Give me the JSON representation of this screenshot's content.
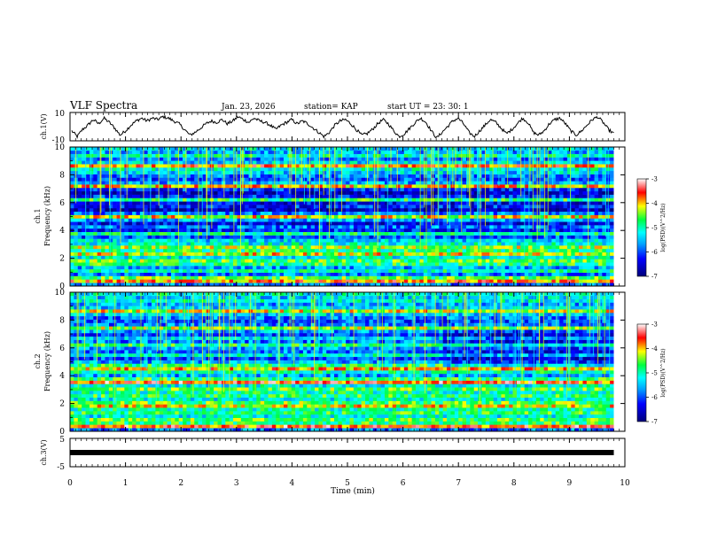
{
  "header": {
    "title": "VLF Spectra",
    "date": "Jan. 23, 2026",
    "station": "station= KAP",
    "start": "start  UT =   23: 30: 1"
  },
  "chart_data": [
    {
      "type": "line",
      "name": "ch1-voltage",
      "ylabel": "ch.1(V)",
      "ylim": [
        -10,
        10
      ],
      "yticks": [
        "10",
        "-10"
      ],
      "xlim": [
        0,
        10
      ],
      "x_end_min": 9.8,
      "y": [
        -3,
        -7,
        -2,
        1,
        5,
        2,
        6,
        3,
        -1,
        -6,
        -3,
        1,
        4,
        6,
        4,
        6,
        5,
        7,
        6,
        4,
        2,
        -2,
        -6,
        -4,
        -1,
        2,
        4,
        3,
        5,
        2,
        4,
        7,
        5,
        3,
        6,
        4,
        3,
        1,
        -2,
        1,
        3,
        5,
        2,
        4,
        2,
        -1,
        -4,
        -7,
        -4,
        1,
        4,
        5,
        2,
        -2,
        -6,
        -5,
        -2,
        2,
        5,
        2,
        -3,
        -7,
        -5,
        -1,
        3,
        6,
        3,
        -3,
        -8,
        -4,
        0,
        4,
        6,
        2,
        -4,
        -7,
        -3,
        1,
        5,
        3,
        -1,
        -5,
        -2,
        2,
        6,
        3,
        -4,
        -6,
        -3,
        2,
        5,
        6,
        2,
        -3,
        -6,
        -3,
        1,
        5,
        7,
        3,
        -2,
        -5
      ]
    },
    {
      "type": "heatmap",
      "name": "ch1-spectrogram",
      "ylabel": "ch.1\nFrequency (kHz)",
      "ylim": [
        0,
        10
      ],
      "yticks": [
        "0",
        "2",
        "4",
        "6",
        "8",
        "10"
      ],
      "colorbar": {
        "label": "log(PSD)(V^2/Hz)",
        "range": [
          -7,
          -3
        ],
        "ticks": [
          "-3",
          "-4",
          "-5",
          "-6",
          "-7"
        ]
      },
      "band_levels": [
        0.3,
        0.8,
        0.6,
        0.3,
        0.5,
        0.35,
        0.55,
        0.6,
        0.45,
        0.7,
        0.55,
        0.65,
        0.45,
        0.4,
        0.25,
        0.5,
        0.2,
        0.3,
        0.15,
        0.35,
        0.7,
        0.3,
        0.1,
        0.2,
        0.15,
        0.55,
        0.2,
        0.1,
        0.2,
        0.75,
        0.35,
        0.25,
        0.3,
        0.4,
        0.45,
        0.8,
        0.4,
        0.3,
        0.5,
        0.35,
        0.4
      ]
    },
    {
      "type": "heatmap",
      "name": "ch2-spectrogram",
      "ylabel": "ch.2\nFrequency (kHz)",
      "ylim": [
        0,
        10
      ],
      "yticks": [
        "0",
        "2",
        "4",
        "6",
        "8",
        "10"
      ],
      "colorbar": {
        "label": "log(PSD)(V^2/Hz)",
        "range": [
          -7,
          -3
        ],
        "ticks": [
          "-3",
          "-4",
          "-5",
          "-6",
          "-7"
        ]
      },
      "band_levels": [
        0.3,
        0.85,
        0.55,
        0.6,
        0.45,
        0.55,
        0.5,
        0.7,
        0.6,
        0.45,
        0.55,
        0.5,
        0.6,
        0.45,
        0.85,
        0.55,
        0.35,
        0.5,
        0.75,
        0.55,
        0.35,
        0.25,
        0.45,
        0.3,
        0.35,
        0.55,
        0.3,
        0.4,
        0.25,
        0.35,
        0.65,
        0.3,
        0.25,
        0.3,
        0.4,
        0.7,
        0.4,
        0.35,
        0.45,
        0.4,
        0.45
      ]
    },
    {
      "type": "line",
      "name": "ch3-voltage",
      "ylabel": "ch.3(V)",
      "ylim": [
        -5,
        5
      ],
      "yticks": [
        "5",
        "-5"
      ],
      "level": 0
    }
  ],
  "x_axis": {
    "label": "Time (min)",
    "range": [
      0,
      10
    ],
    "ticks": [
      "0",
      "1",
      "2",
      "3",
      "4",
      "5",
      "6",
      "7",
      "8",
      "9",
      "10"
    ]
  }
}
